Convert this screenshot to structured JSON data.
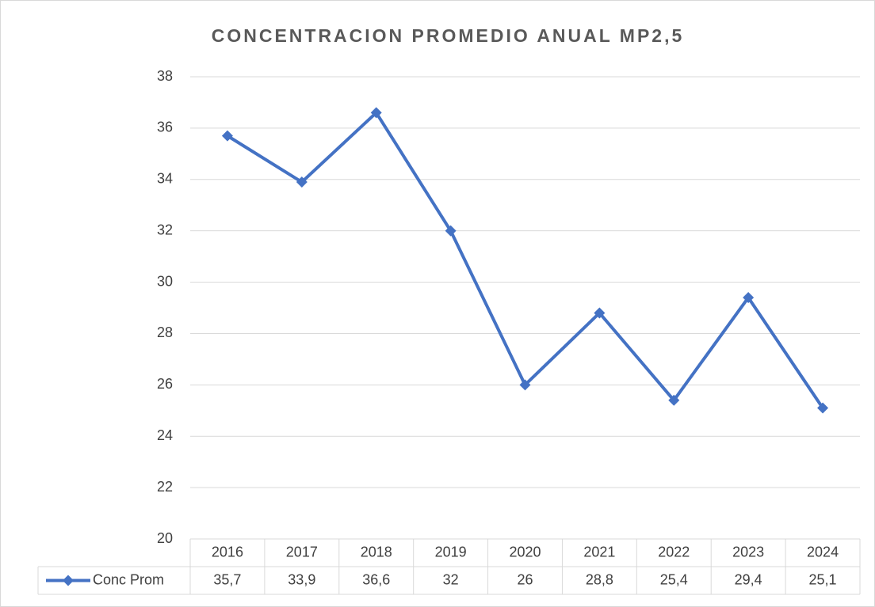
{
  "chart_data": {
    "type": "line",
    "title": "CONCENTRACION PROMEDIO ANUAL MP2,5",
    "categories": [
      "2016",
      "2017",
      "2018",
      "2019",
      "2020",
      "2021",
      "2022",
      "2023",
      "2024"
    ],
    "series": [
      {
        "name": "Conc Prom",
        "color": "#4472c4",
        "values": [
          35.7,
          33.9,
          36.6,
          32,
          26,
          28.8,
          25.4,
          29.4,
          25.1
        ],
        "value_labels": [
          "35,7",
          "33,9",
          "36,6",
          "32",
          "26",
          "28,8",
          "25,4",
          "29,4",
          "25,1"
        ]
      }
    ],
    "ylim": [
      20,
      38
    ],
    "yticks": [
      20,
      22,
      24,
      26,
      28,
      30,
      32,
      34,
      36,
      38
    ],
    "grid": true
  }
}
